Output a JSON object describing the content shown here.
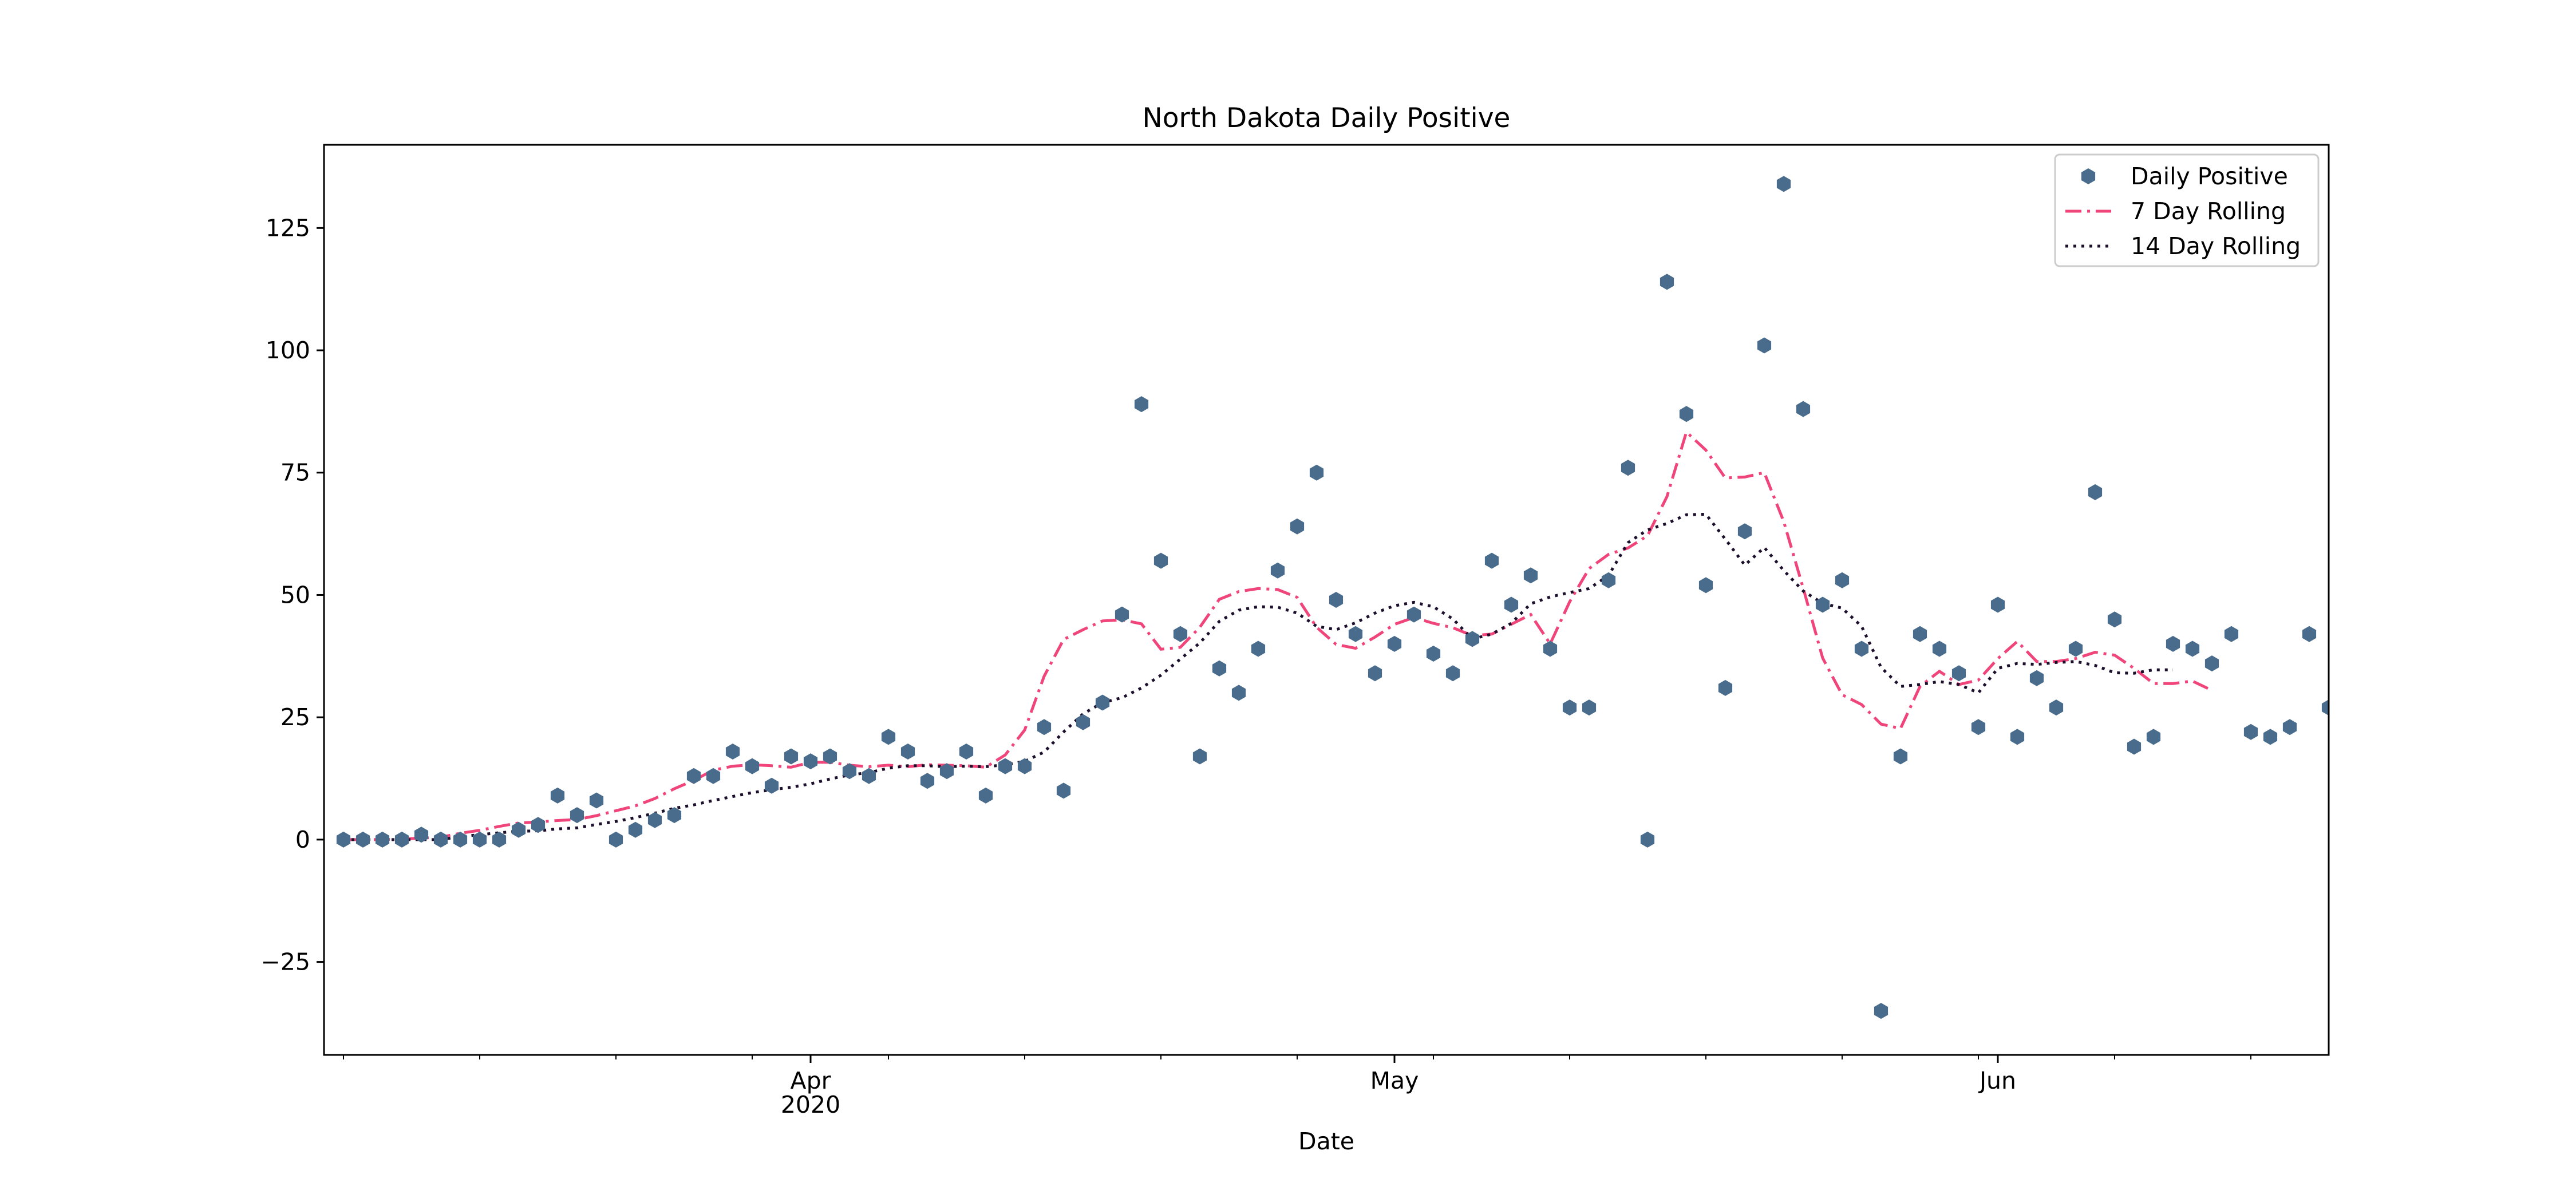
{
  "chart_data": {
    "type": "scatter",
    "title": "North Dakota Daily Positive",
    "xlabel": "Date",
    "ylabel": "",
    "xlim": [
      "2020-03-07",
      "2020-06-18"
    ],
    "ylim": [
      -44,
      142
    ],
    "x_ticks": [
      {
        "date": "2020-04-01",
        "label": "Apr",
        "sublabel": "2020"
      },
      {
        "date": "2020-05-01",
        "label": "May",
        "sublabel": ""
      },
      {
        "date": "2020-06-01",
        "label": "Jun",
        "sublabel": ""
      }
    ],
    "y_ticks": [
      -25,
      0,
      25,
      50,
      75,
      100,
      125
    ],
    "y_tick_labels": [
      "−25",
      "0",
      "25",
      "50",
      "75",
      "100",
      "125"
    ],
    "grid": false,
    "legend_position": "top-right",
    "start_date": "2020-03-08",
    "series": [
      {
        "name": "Daily Positive",
        "style": "markers",
        "color": "#4a6c8c",
        "values": [
          0,
          0,
          0,
          0,
          1,
          0,
          0,
          0,
          0,
          2,
          3,
          9,
          5,
          8,
          0,
          2,
          4,
          5,
          13,
          13,
          18,
          15,
          11,
          17,
          16,
          17,
          14,
          13,
          21,
          18,
          12,
          14,
          18,
          9,
          15,
          15,
          23,
          10,
          24,
          28,
          46,
          89,
          57,
          42,
          17,
          35,
          30,
          39,
          55,
          64,
          75,
          49,
          42,
          34,
          40,
          46,
          38,
          34,
          41,
          57,
          48,
          54,
          39,
          27,
          27,
          53,
          76,
          0,
          114,
          87,
          52,
          31,
          63,
          101,
          134,
          88,
          48,
          53,
          39,
          -35,
          17,
          42,
          39,
          34,
          23,
          48,
          21,
          33,
          27,
          39,
          71,
          45,
          19,
          21,
          40,
          39,
          36,
          42,
          22,
          21,
          23,
          42,
          27
        ]
      },
      {
        "name": "7 Day Rolling",
        "style": "dashdot",
        "color": "#f0457a",
        "values": [
          0,
          0,
          0,
          0.1,
          0.3,
          0.5,
          1.3,
          1.9,
          2.7,
          3.4,
          3.6,
          3.9,
          4.1,
          4.9,
          5.9,
          6.9,
          8.4,
          10.4,
          12.1,
          14.2,
          15.0,
          15.3,
          15.1,
          14.8,
          15.8,
          15.8,
          15.2,
          14.9,
          15.2,
          14.9,
          15.3,
          15.2,
          15.1,
          14.8,
          17.3,
          22.4,
          33.4,
          40.9,
          42.9,
          44.7,
          44.9,
          44.1,
          38.9,
          39.3,
          43.4,
          49.1,
          50.7,
          51.3,
          51.1,
          49.5,
          43.4,
          39.9,
          39.1,
          41.4,
          44.0,
          45.4,
          44.2,
          43.3,
          41.7,
          42.0,
          44.0,
          46.0,
          40.0,
          48.6,
          55.4,
          58.3,
          59.6,
          62.1,
          70.1,
          83.3,
          79.6,
          73.9,
          74.1,
          75.0,
          65.0,
          51.4,
          37.1,
          29.6,
          27.6,
          23.6,
          22.7,
          31.3,
          34.4,
          31.7,
          32.6,
          37.0,
          40.5,
          36.4,
          36.4,
          37.0,
          38.3,
          37.7,
          35.0,
          31.9,
          31.9,
          32.4,
          30.5
        ]
      },
      {
        "name": "14 Day Rolling",
        "style": "dotted",
        "color": "#1b0f2c",
        "values": [
          0,
          0,
          0,
          0,
          0,
          0,
          0.6,
          1.0,
          1.4,
          1.7,
          1.8,
          2.2,
          2.4,
          3.1,
          3.7,
          4.5,
          5.4,
          6.4,
          7.1,
          8.0,
          8.8,
          9.6,
          10.2,
          10.7,
          11.4,
          12.4,
          13.2,
          13.7,
          14.6,
          15.1,
          15.1,
          14.9,
          15.0,
          14.9,
          15.3,
          16.0,
          17.9,
          22.0,
          25.7,
          28.0,
          29.0,
          31.0,
          33.6,
          36.9,
          40.2,
          44.6,
          46.9,
          47.6,
          47.5,
          46.3,
          43.6,
          42.9,
          44.3,
          46.3,
          47.8,
          48.5,
          47.6,
          45.1,
          41.0,
          42.0,
          44.2,
          48.2,
          49.6,
          50.5,
          51.3,
          54.0,
          60.7,
          63.3,
          64.6,
          66.4,
          66.5,
          61.4,
          56.1,
          59.7,
          55.0,
          50.8,
          48.3,
          47.3,
          43.6,
          35.2,
          31.3,
          31.7,
          32.3,
          31.7,
          30.0,
          35.0,
          36.0,
          35.8,
          36.2,
          36.4,
          35.6,
          34.1,
          34.0,
          34.7,
          34.7
        ]
      }
    ]
  }
}
